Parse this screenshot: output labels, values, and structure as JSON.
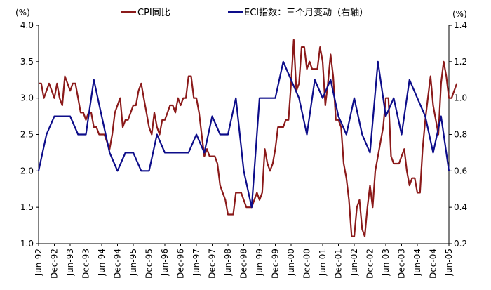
{
  "chart_data": {
    "type": "line",
    "title": "",
    "y_left": {
      "unit_label": "(%)",
      "lim": [
        1.0,
        4.0
      ],
      "ticks": [
        "1.0",
        "1.5",
        "2.0",
        "2.5",
        "3.0",
        "3.5",
        "4.0"
      ]
    },
    "y_right": {
      "unit_label": "(%)",
      "lim": [
        0.2,
        1.4
      ],
      "ticks": [
        "0.2",
        "0.4",
        "0.6",
        "0.8",
        "1.0",
        "1.2",
        "1.4"
      ]
    },
    "x_tick_labels": [
      "Jun-92",
      "Dec-92",
      "Jun-93",
      "Dec-93",
      "Jun-94",
      "Dec-94",
      "Jun-95",
      "Dec-95",
      "Jun-96",
      "Dec-96",
      "Jun-97",
      "Dec-97",
      "Jun-98",
      "Dec-98",
      "Jun-99",
      "Dec-99",
      "Jun-00",
      "Dec-00",
      "Jun-01",
      "Dec-01",
      "Jun-02",
      "Dec-02",
      "Jun-03",
      "Dec-03",
      "Jun-04",
      "Dec-04",
      "Jun-05"
    ],
    "x_start": "Jun-92",
    "x_end": "Jun-05",
    "series": [
      {
        "name": "CPI同比",
        "axis": "left",
        "color": "#8B1A1A",
        "frequency": "monthly",
        "values": [
          3.2,
          3.2,
          3.0,
          3.1,
          3.2,
          3.1,
          3.0,
          3.2,
          3.0,
          2.9,
          3.3,
          3.2,
          3.1,
          3.2,
          3.2,
          3.0,
          2.8,
          2.8,
          2.7,
          2.8,
          2.8,
          2.6,
          2.6,
          2.5,
          2.5,
          2.5,
          2.4,
          2.3,
          2.5,
          2.8,
          2.9,
          3.0,
          2.6,
          2.7,
          2.7,
          2.8,
          2.9,
          2.9,
          3.1,
          3.2,
          3.0,
          2.8,
          2.6,
          2.5,
          2.8,
          2.6,
          2.5,
          2.7,
          2.7,
          2.8,
          2.9,
          2.9,
          2.8,
          3.0,
          2.9,
          3.0,
          3.0,
          3.3,
          3.3,
          3.0,
          3.0,
          2.8,
          2.5,
          2.2,
          2.3,
          2.2,
          2.2,
          2.2,
          2.1,
          1.8,
          1.7,
          1.6,
          1.4,
          1.4,
          1.4,
          1.7,
          1.7,
          1.7,
          1.6,
          1.5,
          1.5,
          1.5,
          1.6,
          1.7,
          1.6,
          1.7,
          2.3,
          2.1,
          2.0,
          2.1,
          2.3,
          2.6,
          2.6,
          2.6,
          2.7,
          2.7,
          3.2,
          3.8,
          3.1,
          3.2,
          3.7,
          3.7,
          3.4,
          3.5,
          3.4,
          3.4,
          3.4,
          3.7,
          3.5,
          2.9,
          3.2,
          3.6,
          3.3,
          2.7,
          2.7,
          2.6,
          2.1,
          1.9,
          1.6,
          1.1,
          1.1,
          1.5,
          1.6,
          1.2,
          1.1,
          1.5,
          1.8,
          1.5,
          2.0,
          2.2,
          2.4,
          2.6,
          3.0,
          3.0,
          2.2,
          2.1,
          2.1,
          2.1,
          2.2,
          2.3,
          2.0,
          1.8,
          1.9,
          1.9,
          1.7,
          1.7,
          2.3,
          2.7,
          3.0,
          3.3,
          2.9,
          2.7,
          2.5,
          3.2,
          3.5,
          3.3,
          3.0,
          3.0,
          3.1,
          3.2
        ]
      },
      {
        "name": "ECI指数：三个月变动（右轴）",
        "axis": "right",
        "color": "#0D0D8A",
        "frequency": "quarterly",
        "values": [
          0.6,
          0.8,
          0.9,
          0.9,
          0.9,
          0.8,
          0.8,
          1.1,
          0.9,
          0.7,
          0.6,
          0.7,
          0.7,
          0.6,
          0.6,
          0.8,
          0.7,
          0.7,
          0.7,
          0.7,
          0.8,
          0.7,
          0.9,
          0.8,
          0.8,
          1.0,
          0.6,
          0.4,
          1.0,
          1.0,
          1.0,
          1.2,
          1.1,
          1.0,
          0.8,
          1.1,
          1.0,
          1.1,
          0.9,
          0.8,
          1.0,
          0.8,
          0.7,
          1.2,
          0.9,
          1.0,
          0.8,
          1.1,
          1.0,
          0.9,
          0.7,
          0.9,
          0.6
        ]
      }
    ],
    "legend": {
      "position": "top",
      "entries": [
        "CPI同比",
        "ECI指数：三个月变动（右轴）"
      ]
    }
  }
}
